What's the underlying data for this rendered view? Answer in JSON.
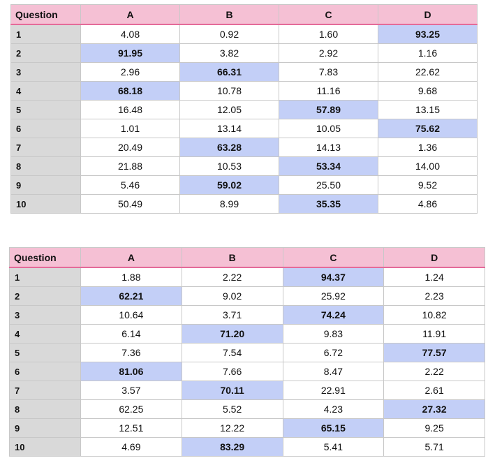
{
  "colors": {
    "header_bg": "#f5c0d4",
    "header_border": "#e46b99",
    "question_col_bg": "#d9d9d9",
    "highlight_bg": "#c3cff7"
  },
  "tables": [
    {
      "headers": [
        "Question",
        "A",
        "B",
        "C",
        "D"
      ],
      "rows": [
        {
          "q": "1",
          "values": [
            "4.08",
            "0.92",
            "1.60",
            "93.25"
          ],
          "highlight": 3
        },
        {
          "q": "2",
          "values": [
            "91.95",
            "3.82",
            "2.92",
            "1.16"
          ],
          "highlight": 0
        },
        {
          "q": "3",
          "values": [
            "2.96",
            "66.31",
            "7.83",
            "22.62"
          ],
          "highlight": 1
        },
        {
          "q": "4",
          "values": [
            "68.18",
            "10.78",
            "11.16",
            "9.68"
          ],
          "highlight": 0
        },
        {
          "q": "5",
          "values": [
            "16.48",
            "12.05",
            "57.89",
            "13.15"
          ],
          "highlight": 2
        },
        {
          "q": "6",
          "values": [
            "1.01",
            "13.14",
            "10.05",
            "75.62"
          ],
          "highlight": 3
        },
        {
          "q": "7",
          "values": [
            "20.49",
            "63.28",
            "14.13",
            "1.36"
          ],
          "highlight": 1
        },
        {
          "q": "8",
          "values": [
            "21.88",
            "10.53",
            "53.34",
            "14.00"
          ],
          "highlight": 2
        },
        {
          "q": "9",
          "values": [
            "5.46",
            "59.02",
            "25.50",
            "9.52"
          ],
          "highlight": 1
        },
        {
          "q": "10",
          "values": [
            "50.49",
            "8.99",
            "35.35",
            "4.86"
          ],
          "highlight": 2
        }
      ]
    },
    {
      "headers": [
        "Question",
        "A",
        "B",
        "C",
        "D"
      ],
      "rows": [
        {
          "q": "1",
          "values": [
            "1.88",
            "2.22",
            "94.37",
            "1.24"
          ],
          "highlight": 2
        },
        {
          "q": "2",
          "values": [
            "62.21",
            "9.02",
            "25.92",
            "2.23"
          ],
          "highlight": 0
        },
        {
          "q": "3",
          "values": [
            "10.64",
            "3.71",
            "74.24",
            "10.82"
          ],
          "highlight": 2
        },
        {
          "q": "4",
          "values": [
            "6.14",
            "71.20",
            "9.83",
            "11.91"
          ],
          "highlight": 1
        },
        {
          "q": "5",
          "values": [
            "7.36",
            "7.54",
            "6.72",
            "77.57"
          ],
          "highlight": 3
        },
        {
          "q": "6",
          "values": [
            "81.06",
            "7.66",
            "8.47",
            "2.22"
          ],
          "highlight": 0
        },
        {
          "q": "7",
          "values": [
            "3.57",
            "70.11",
            "22.91",
            "2.61"
          ],
          "highlight": 1
        },
        {
          "q": "8",
          "values": [
            "62.25",
            "5.52",
            "4.23",
            "27.32"
          ],
          "highlight": 3
        },
        {
          "q": "9",
          "values": [
            "12.51",
            "12.22",
            "65.15",
            "9.25"
          ],
          "highlight": 2
        },
        {
          "q": "10",
          "values": [
            "4.69",
            "83.29",
            "5.41",
            "5.71"
          ],
          "highlight": 1
        }
      ]
    }
  ]
}
